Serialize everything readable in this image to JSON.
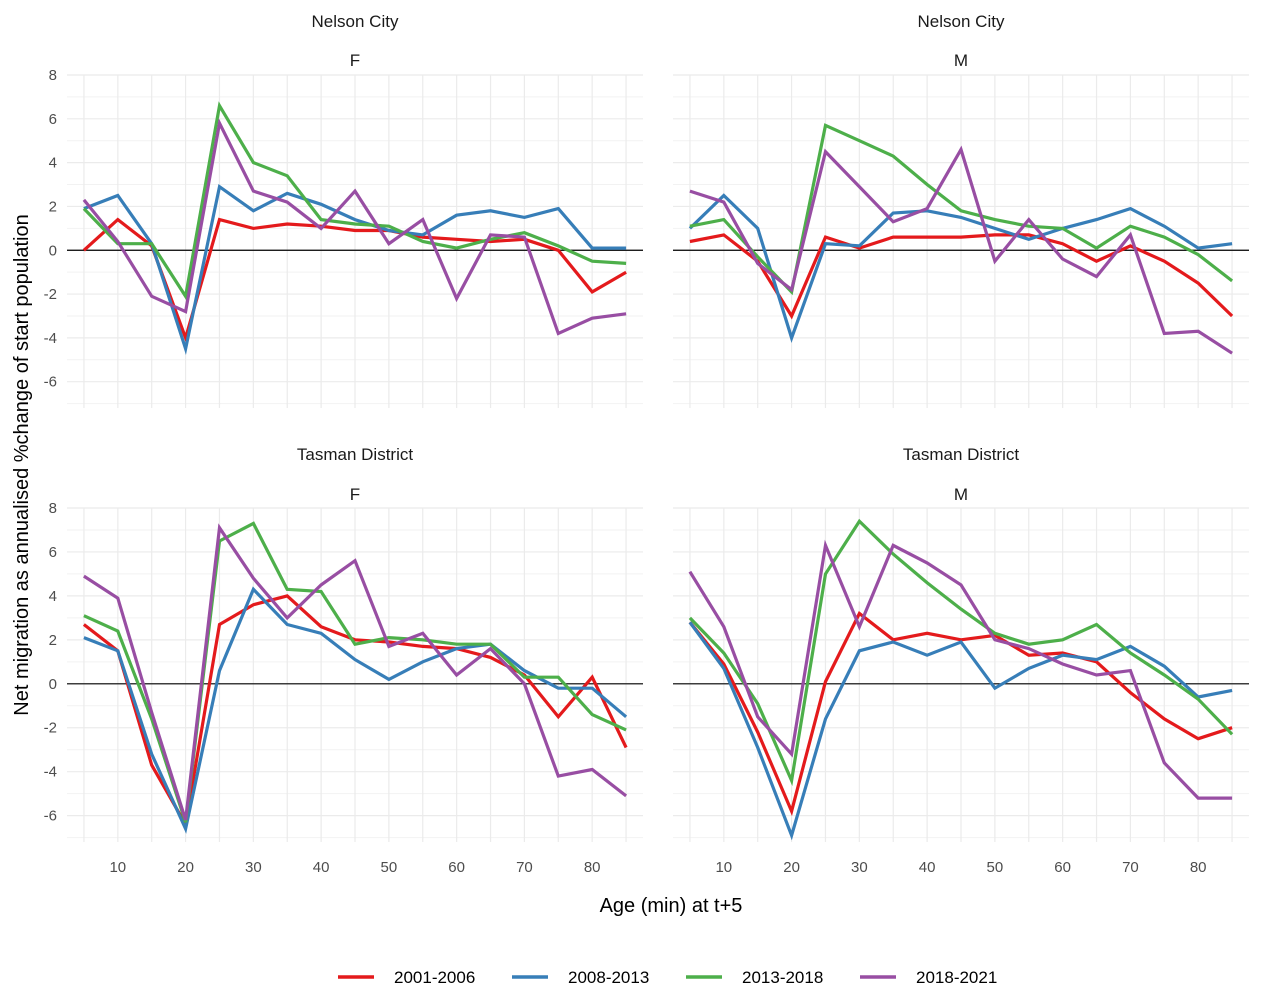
{
  "chart_data": {
    "type": "line",
    "xlabel": "Age (min) at t+5",
    "ylabel": "Net migration as annualised %change of start population",
    "x": [
      5,
      10,
      15,
      20,
      25,
      30,
      35,
      40,
      45,
      50,
      55,
      60,
      65,
      70,
      75,
      80,
      85
    ],
    "x_ticks": [
      10,
      20,
      30,
      40,
      50,
      60,
      70,
      80
    ],
    "y_ticks": [
      -6,
      -4,
      -2,
      0,
      2,
      4,
      6,
      8
    ],
    "grid": true,
    "reference_line_y": 0,
    "legend": {
      "position": "bottom",
      "entries": [
        "2001-2006",
        "2008-2013",
        "2013-2018",
        "2018-2021"
      ]
    },
    "colors": {
      "2001-2006": "#e41a1c",
      "2008-2013": "#377eb8",
      "2013-2018": "#4daf4a",
      "2018-2021": "#984ea3"
    },
    "panels": [
      {
        "region": "Nelson City",
        "sex": "F",
        "ylim": [
          -7.2,
          8
        ],
        "series": [
          {
            "name": "2001-2006",
            "values": [
              0.0,
              1.4,
              0.2,
              -4.0,
              1.4,
              1.0,
              1.2,
              1.1,
              0.9,
              0.9,
              0.6,
              0.5,
              0.4,
              0.5,
              0.0,
              -1.9,
              -1.0
            ]
          },
          {
            "name": "2008-2013",
            "values": [
              1.9,
              2.5,
              0.3,
              -4.5,
              2.9,
              1.8,
              2.6,
              2.1,
              1.4,
              0.9,
              0.7,
              1.6,
              1.8,
              1.5,
              1.9,
              0.1,
              0.1
            ]
          },
          {
            "name": "2013-2018",
            "values": [
              1.9,
              0.3,
              0.3,
              -2.1,
              6.6,
              4.0,
              3.4,
              1.4,
              1.2,
              1.1,
              0.4,
              0.1,
              0.5,
              0.8,
              0.2,
              -0.5,
              -0.6
            ]
          },
          {
            "name": "2018-2021",
            "values": [
              2.3,
              0.4,
              -2.1,
              -2.8,
              5.8,
              2.7,
              2.2,
              1.0,
              2.7,
              0.3,
              1.4,
              -2.2,
              0.7,
              0.6,
              -3.8,
              -3.1,
              -2.9
            ]
          }
        ]
      },
      {
        "region": "Nelson City",
        "sex": "M",
        "ylim": [
          -7.2,
          8
        ],
        "series": [
          {
            "name": "2001-2006",
            "values": [
              0.4,
              0.7,
              -0.5,
              -3.0,
              0.6,
              0.1,
              0.6,
              0.6,
              0.6,
              0.7,
              0.7,
              0.3,
              -0.5,
              0.2,
              -0.5,
              -1.5,
              -3.0
            ]
          },
          {
            "name": "2008-2013",
            "values": [
              1.0,
              2.5,
              1.0,
              -4.0,
              0.3,
              0.2,
              1.7,
              1.8,
              1.5,
              1.0,
              0.5,
              1.0,
              1.4,
              1.9,
              1.1,
              0.1,
              0.3
            ]
          },
          {
            "name": "2013-2018",
            "values": [
              1.1,
              1.4,
              -0.3,
              -1.9,
              5.7,
              5.0,
              4.3,
              3.0,
              1.8,
              1.4,
              1.1,
              1.0,
              0.1,
              1.1,
              0.6,
              -0.2,
              -1.4
            ]
          },
          {
            "name": "2018-2021",
            "values": [
              2.7,
              2.2,
              -0.6,
              -1.8,
              4.5,
              2.9,
              1.3,
              1.9,
              4.6,
              -0.5,
              1.4,
              -0.4,
              -1.2,
              0.7,
              -3.8,
              -3.7,
              -4.7
            ]
          }
        ]
      },
      {
        "region": "Tasman District",
        "sex": "F",
        "ylim": [
          -7.2,
          8
        ],
        "series": [
          {
            "name": "2001-2006",
            "values": [
              2.7,
              1.5,
              -3.7,
              -6.4,
              2.7,
              3.6,
              4.0,
              2.6,
              2.0,
              1.9,
              1.7,
              1.6,
              1.2,
              0.4,
              -1.5,
              0.3,
              -2.9
            ]
          },
          {
            "name": "2008-2013",
            "values": [
              2.1,
              1.5,
              -3.2,
              -6.6,
              0.6,
              4.3,
              2.7,
              2.3,
              1.1,
              0.2,
              1.0,
              1.6,
              1.8,
              0.6,
              -0.2,
              -0.2,
              -1.5
            ]
          },
          {
            "name": "2013-2018",
            "values": [
              3.1,
              2.4,
              -1.6,
              -6.3,
              6.5,
              7.3,
              4.3,
              4.2,
              1.8,
              2.1,
              2.0,
              1.8,
              1.8,
              0.3,
              0.3,
              -1.4,
              -2.1
            ]
          },
          {
            "name": "2018-2021",
            "values": [
              4.9,
              3.9,
              -1.3,
              -6.2,
              7.1,
              4.8,
              3.0,
              4.5,
              5.6,
              1.7,
              2.3,
              0.4,
              1.6,
              0.0,
              -4.2,
              -3.9,
              -5.1
            ]
          }
        ]
      },
      {
        "region": "Tasman District",
        "sex": "M",
        "ylim": [
          -7.2,
          8
        ],
        "series": [
          {
            "name": "2001-2006",
            "values": [
              2.8,
              0.9,
              -2.2,
              -5.8,
              0.1,
              3.2,
              2.0,
              2.3,
              2.0,
              2.2,
              1.3,
              1.4,
              1.0,
              -0.4,
              -1.6,
              -2.5,
              -2.0
            ]
          },
          {
            "name": "2008-2013",
            "values": [
              2.8,
              0.7,
              -2.9,
              -6.9,
              -1.6,
              1.5,
              1.9,
              1.3,
              1.9,
              -0.2,
              0.7,
              1.3,
              1.1,
              1.7,
              0.8,
              -0.6,
              -0.3
            ]
          },
          {
            "name": "2013-2018",
            "values": [
              3.0,
              1.4,
              -0.9,
              -4.4,
              5.0,
              7.4,
              5.9,
              4.6,
              3.4,
              2.3,
              1.8,
              2.0,
              2.7,
              1.4,
              0.4,
              -0.7,
              -2.3
            ]
          },
          {
            "name": "2018-2021",
            "values": [
              5.1,
              2.6,
              -1.5,
              -3.2,
              6.3,
              2.6,
              6.3,
              5.5,
              4.5,
              2.0,
              1.6,
              0.9,
              0.4,
              0.6,
              -3.6,
              -5.2,
              -5.2
            ]
          }
        ]
      }
    ]
  }
}
